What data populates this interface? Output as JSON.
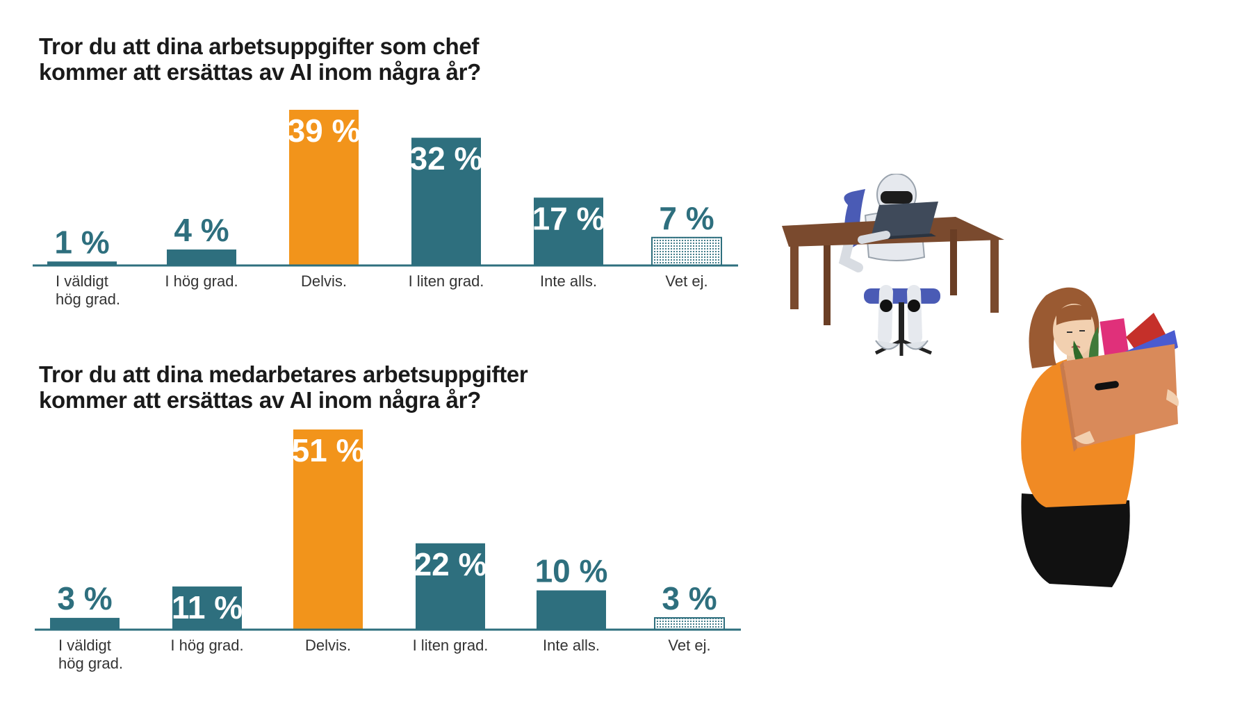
{
  "colors": {
    "teal": "#2e6f7e",
    "orange": "#f2941b",
    "text": "#1a1a1a",
    "label": "#333333",
    "white": "#ffffff"
  },
  "charts": [
    {
      "title_line1": "Tror du att dina arbetsuppgifter som chef",
      "title_line2": "kommer att ersättas av AI inom några år?"
    },
    {
      "title_line1": "Tror du att dina medarbetares arbetsuppgifter",
      "title_line2": "kommer att ersättas av AI inom några år?"
    }
  ],
  "chart_data": [
    {
      "type": "bar",
      "title": "Tror du att dina arbetsuppgifter som chef kommer att ersättas av AI inom några år?",
      "categories": [
        [
          "I väldigt",
          "hög grad."
        ],
        [
          "I hög grad."
        ],
        [
          "Delvis."
        ],
        [
          "I liten grad."
        ],
        [
          "Inte alls."
        ],
        [
          "Vet ej."
        ]
      ],
      "values": [
        1,
        4,
        39,
        32,
        17,
        7
      ],
      "value_labels": [
        "1 %",
        "4 %",
        "39 %",
        "32 %",
        "17 %",
        "7 %"
      ],
      "bar_styles": [
        "teal",
        "teal",
        "orange",
        "teal",
        "teal",
        "dotted"
      ],
      "ylim": [
        0,
        39
      ]
    },
    {
      "type": "bar",
      "title": "Tror du att dina medarbetares arbetsuppgifter kommer att ersättas av AI inom några år?",
      "categories": [
        [
          "I väldigt",
          "hög grad."
        ],
        [
          "I hög grad."
        ],
        [
          "Delvis."
        ],
        [
          "I liten grad."
        ],
        [
          "Inte alls."
        ],
        [
          "Vet ej."
        ]
      ],
      "values": [
        3,
        11,
        51,
        22,
        10,
        3
      ],
      "value_labels": [
        "3 %",
        "11 %",
        "51 %",
        "22 %",
        "10 %",
        "3 %"
      ],
      "bar_styles": [
        "teal",
        "teal",
        "orange",
        "teal",
        "teal",
        "dotted"
      ],
      "ylim": [
        0,
        51
      ]
    }
  ],
  "illustrations": {
    "robot": "robot-at-desk-with-laptop",
    "woman": "woman-carrying-box"
  }
}
